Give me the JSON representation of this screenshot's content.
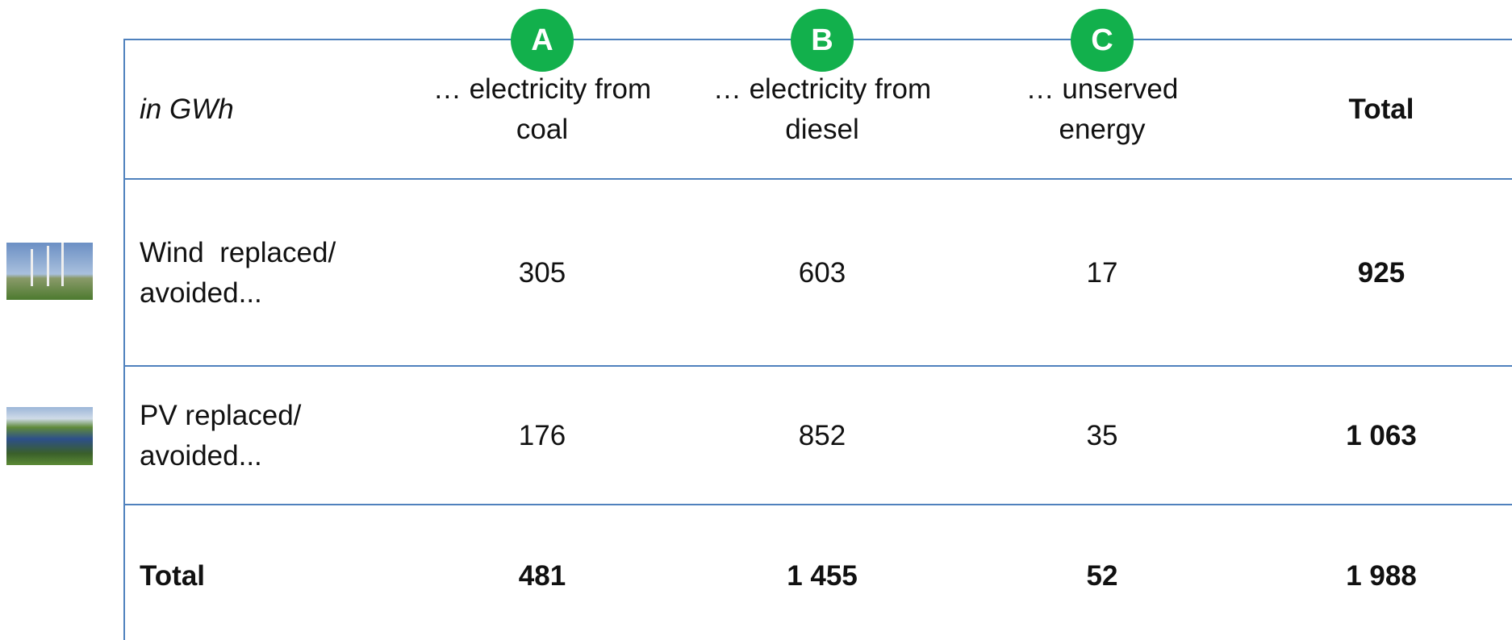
{
  "table": {
    "unit": "in GWh",
    "columns": [
      {
        "badge": "A",
        "label": [
          "… electricity from",
          "coal"
        ]
      },
      {
        "badge": "B",
        "label": [
          "… electricity from",
          "diesel"
        ]
      },
      {
        "badge": "C",
        "label": [
          "… unserved",
          "energy"
        ]
      },
      {
        "label": [
          "Total"
        ]
      }
    ],
    "rows": [
      {
        "label": [
          "Wind  replaced/",
          "avoided..."
        ],
        "cells": [
          "305",
          "603",
          "17",
          "925"
        ]
      },
      {
        "label": [
          "PV replaced/",
          "avoided..."
        ],
        "cells": [
          "176",
          "852",
          "35",
          "1 063"
        ]
      },
      {
        "label": [
          "Total"
        ],
        "cells": [
          "481",
          "1 455",
          "52",
          "1 988"
        ]
      }
    ]
  }
}
